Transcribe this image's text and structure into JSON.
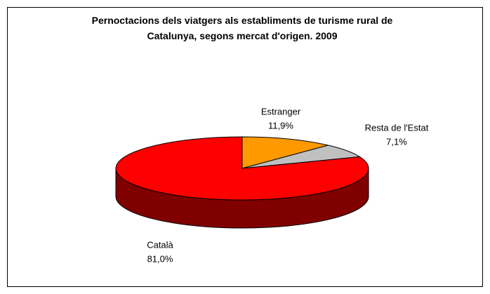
{
  "chart_data": {
    "type": "pie",
    "title": "Pernoctacions dels viatgers als establiments de turisme rural de Catalunya, segons mercat d'origen. 2009",
    "categories": [
      "Estranger",
      "Resta de l'Estat",
      "Català"
    ],
    "values": [
      11.9,
      7.1,
      81.0
    ],
    "value_labels": [
      "11,9%",
      "7,1%",
      "81,0%"
    ],
    "colors": [
      "#ff9900",
      "#c0c0c0",
      "#ff0000"
    ],
    "side_colors": [
      "#996000",
      "#808080",
      "#800000"
    ]
  }
}
